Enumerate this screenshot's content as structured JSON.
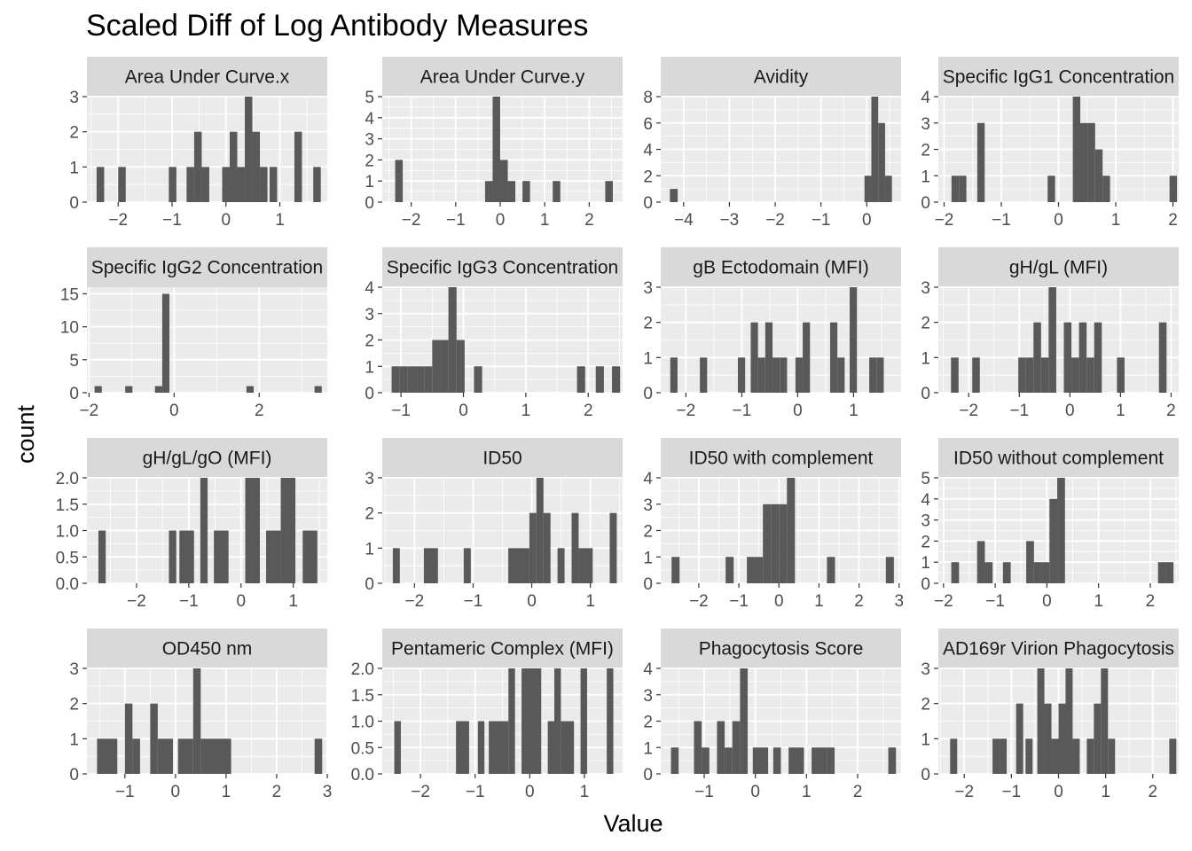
{
  "chart_data": {
    "type": "bar",
    "title": "Scaled Diff of Log Antibody Measures",
    "xlabel": "Value",
    "ylabel": "count",
    "colors": {
      "bar": "#595959",
      "panel": "#ebebeb",
      "strip": "#d9d9d9",
      "grid": "#ffffff",
      "tick": "#333333"
    },
    "facets": [
      {
        "name": "Area Under Curve.x",
        "xlim": [
          -2.58,
          1.88
        ],
        "ylim": [
          0,
          3
        ],
        "xticks": [
          -2,
          -1,
          0,
          1
        ],
        "yticks": [
          0,
          1,
          2,
          3
        ],
        "bins": [
          [
            -2.4,
            -2.26,
            1
          ],
          [
            -2.0,
            -1.86,
            1
          ],
          [
            -1.06,
            -0.92,
            1
          ],
          [
            -0.73,
            -0.59,
            1
          ],
          [
            -0.59,
            -0.45,
            2
          ],
          [
            -0.45,
            -0.31,
            1
          ],
          [
            -0.07,
            0.07,
            1
          ],
          [
            0.07,
            0.21,
            2
          ],
          [
            0.21,
            0.35,
            1
          ],
          [
            0.35,
            0.49,
            3
          ],
          [
            0.49,
            0.63,
            2
          ],
          [
            0.63,
            0.77,
            1
          ],
          [
            0.81,
            0.95,
            1
          ],
          [
            1.27,
            1.41,
            2
          ],
          [
            1.62,
            1.76,
            1
          ]
        ]
      },
      {
        "name": "Area Under Curve.y",
        "xlim": [
          -2.65,
          2.75
        ],
        "ylim": [
          0,
          5
        ],
        "xticks": [
          -2,
          -1,
          0,
          1,
          2
        ],
        "yticks": [
          0,
          1,
          2,
          3,
          4,
          5
        ],
        "bins": [
          [
            -2.36,
            -2.19,
            2
          ],
          [
            -0.34,
            -0.17,
            1
          ],
          [
            -0.17,
            0.0,
            5
          ],
          [
            0.0,
            0.17,
            2
          ],
          [
            0.17,
            0.34,
            1
          ],
          [
            0.5,
            0.67,
            1
          ],
          [
            1.18,
            1.35,
            1
          ],
          [
            2.36,
            2.53,
            1
          ]
        ]
      },
      {
        "name": "Avidity",
        "xlim": [
          -4.5,
          0.75
        ],
        "ylim": [
          0,
          8
        ],
        "xticks": [
          -4,
          -3,
          -2,
          -1,
          0
        ],
        "yticks": [
          0,
          2,
          4,
          6,
          8
        ],
        "bins": [
          [
            -4.3,
            -4.13,
            1
          ],
          [
            -0.05,
            0.1,
            2
          ],
          [
            0.1,
            0.25,
            8
          ],
          [
            0.25,
            0.4,
            6
          ],
          [
            0.4,
            0.55,
            2
          ]
        ]
      },
      {
        "name": "Specific IgG1 Concentration",
        "xlim": [
          -2.1,
          2.1
        ],
        "ylim": [
          0,
          4
        ],
        "xticks": [
          -2,
          -1,
          0,
          1,
          2
        ],
        "yticks": [
          0,
          1,
          2,
          3,
          4
        ],
        "bins": [
          [
            -1.87,
            -1.74,
            1
          ],
          [
            -1.74,
            -1.61,
            1
          ],
          [
            -1.42,
            -1.29,
            3
          ],
          [
            -0.19,
            -0.06,
            1
          ],
          [
            0.25,
            0.38,
            4
          ],
          [
            0.38,
            0.51,
            3
          ],
          [
            0.51,
            0.64,
            3
          ],
          [
            0.64,
            0.77,
            2
          ],
          [
            0.77,
            0.9,
            1
          ],
          [
            1.94,
            2.07,
            1
          ]
        ]
      },
      {
        "name": "Specific IgG2 Concentration",
        "xlim": [
          -2.05,
          3.6
        ],
        "ylim": [
          0,
          16
        ],
        "xticks": [
          -2,
          0,
          2
        ],
        "yticks": [
          0,
          5,
          10,
          15
        ],
        "bins": [
          [
            -1.87,
            -1.7,
            1
          ],
          [
            -1.15,
            -0.98,
            1
          ],
          [
            -0.45,
            -0.28,
            1
          ],
          [
            -0.28,
            -0.11,
            15
          ],
          [
            1.7,
            1.87,
            1
          ],
          [
            3.3,
            3.47,
            1
          ]
        ]
      },
      {
        "name": "Specific IgG3 Concentration",
        "xlim": [
          -1.3,
          2.55
        ],
        "ylim": [
          0,
          4
        ],
        "xticks": [
          -1,
          0,
          1,
          2
        ],
        "yticks": [
          0,
          1,
          2,
          3,
          4
        ],
        "bins": [
          [
            -1.15,
            -1.02,
            1
          ],
          [
            -1.02,
            -0.89,
            1
          ],
          [
            -0.89,
            -0.76,
            1
          ],
          [
            -0.76,
            -0.63,
            1
          ],
          [
            -0.63,
            -0.5,
            1
          ],
          [
            -0.5,
            -0.37,
            2
          ],
          [
            -0.37,
            -0.24,
            2
          ],
          [
            -0.24,
            -0.11,
            4
          ],
          [
            -0.11,
            0.02,
            2
          ],
          [
            0.17,
            0.3,
            1
          ],
          [
            1.82,
            1.95,
            1
          ],
          [
            2.12,
            2.25,
            1
          ],
          [
            2.38,
            2.51,
            1
          ]
        ]
      },
      {
        "name": "gB Ectodomain (MFI)",
        "xlim": [
          -2.45,
          1.85
        ],
        "ylim": [
          0,
          3
        ],
        "xticks": [
          -2,
          -1,
          0,
          1
        ],
        "yticks": [
          0,
          1,
          2,
          3
        ],
        "bins": [
          [
            -2.28,
            -2.15,
            1
          ],
          [
            -1.75,
            -1.62,
            1
          ],
          [
            -1.07,
            -0.94,
            1
          ],
          [
            -0.84,
            -0.71,
            2
          ],
          [
            -0.71,
            -0.58,
            1
          ],
          [
            -0.58,
            -0.45,
            2
          ],
          [
            -0.45,
            -0.32,
            1
          ],
          [
            -0.32,
            -0.19,
            1
          ],
          [
            -0.04,
            0.09,
            1
          ],
          [
            0.09,
            0.22,
            2
          ],
          [
            0.58,
            0.71,
            2
          ],
          [
            0.71,
            0.84,
            1
          ],
          [
            0.93,
            1.06,
            3
          ],
          [
            1.28,
            1.41,
            1
          ],
          [
            1.41,
            1.54,
            1
          ]
        ]
      },
      {
        "name": "gH/gL (MFI)",
        "xlim": [
          -2.6,
          2.15
        ],
        "ylim": [
          0,
          3
        ],
        "xticks": [
          -2,
          -1,
          0,
          1,
          2
        ],
        "yticks": [
          0,
          1,
          2,
          3
        ],
        "bins": [
          [
            -2.35,
            -2.2,
            1
          ],
          [
            -1.93,
            -1.78,
            1
          ],
          [
            -1.02,
            -0.87,
            1
          ],
          [
            -0.87,
            -0.72,
            1
          ],
          [
            -0.72,
            -0.57,
            2
          ],
          [
            -0.57,
            -0.42,
            1
          ],
          [
            -0.42,
            -0.27,
            3
          ],
          [
            -0.12,
            0.03,
            2
          ],
          [
            0.03,
            0.18,
            1
          ],
          [
            0.18,
            0.33,
            2
          ],
          [
            0.33,
            0.48,
            1
          ],
          [
            0.48,
            0.63,
            2
          ],
          [
            0.93,
            1.08,
            1
          ],
          [
            1.76,
            1.91,
            2
          ]
        ]
      },
      {
        "name": "gH/gL/gO (MFI)",
        "xlim": [
          -2.95,
          1.65
        ],
        "ylim": [
          0,
          2
        ],
        "xticks": [
          -2,
          -1,
          0,
          1
        ],
        "yticks": [
          0,
          0.5,
          1,
          1.5,
          2
        ],
        "yticklabels": [
          "0.0",
          "0.5",
          "1.0",
          "1.5",
          "2.0"
        ],
        "bins": [
          [
            -2.73,
            -2.59,
            1
          ],
          [
            -1.38,
            -1.24,
            1
          ],
          [
            -1.18,
            -0.9,
            1
          ],
          [
            -0.78,
            -0.64,
            2
          ],
          [
            -0.52,
            -0.24,
            1
          ],
          [
            0.08,
            0.36,
            2
          ],
          [
            0.48,
            0.76,
            1
          ],
          [
            0.76,
            1.04,
            2
          ],
          [
            1.18,
            1.46,
            1
          ]
        ]
      },
      {
        "name": "ID50",
        "xlim": [
          -2.55,
          1.55
        ],
        "ylim": [
          0,
          3
        ],
        "xticks": [
          -2,
          -1,
          0,
          1
        ],
        "yticks": [
          0,
          1,
          2,
          3
        ],
        "bins": [
          [
            -2.37,
            -2.25,
            1
          ],
          [
            -1.84,
            -1.6,
            1
          ],
          [
            -1.16,
            -1.04,
            1
          ],
          [
            -0.4,
            -0.04,
            1
          ],
          [
            -0.04,
            0.08,
            2
          ],
          [
            0.08,
            0.2,
            3
          ],
          [
            0.2,
            0.32,
            2
          ],
          [
            0.44,
            0.56,
            1
          ],
          [
            0.68,
            0.8,
            2
          ],
          [
            0.8,
            1.04,
            1
          ],
          [
            1.33,
            1.45,
            2
          ]
        ]
      },
      {
        "name": "ID50 with complement",
        "xlim": [
          -2.95,
          3.05
        ],
        "ylim": [
          0,
          4
        ],
        "xticks": [
          -2,
          -1,
          0,
          1,
          2,
          3
        ],
        "yticks": [
          0,
          1,
          2,
          3,
          4
        ],
        "bins": [
          [
            -2.68,
            -2.48,
            1
          ],
          [
            -1.33,
            -1.13,
            1
          ],
          [
            -0.8,
            -0.4,
            1
          ],
          [
            -0.4,
            -0.2,
            3
          ],
          [
            -0.2,
            0.0,
            3
          ],
          [
            0.0,
            0.2,
            3
          ],
          [
            0.2,
            0.4,
            4
          ],
          [
            1.2,
            1.4,
            1
          ],
          [
            2.67,
            2.87,
            1
          ]
        ]
      },
      {
        "name": "ID50 without complement",
        "xlim": [
          -2.1,
          2.55
        ],
        "ylim": [
          0,
          5
        ],
        "xticks": [
          -2,
          -1,
          0,
          1,
          2
        ],
        "yticks": [
          0,
          1,
          2,
          3,
          4,
          5
        ],
        "bins": [
          [
            -1.85,
            -1.7,
            1
          ],
          [
            -1.35,
            -1.2,
            2
          ],
          [
            -1.2,
            -1.05,
            1
          ],
          [
            -0.85,
            -0.7,
            1
          ],
          [
            -0.4,
            -0.25,
            2
          ],
          [
            -0.25,
            -0.1,
            1
          ],
          [
            -0.1,
            0.05,
            1
          ],
          [
            0.05,
            0.2,
            4
          ],
          [
            0.2,
            0.35,
            5
          ],
          [
            2.15,
            2.3,
            1
          ],
          [
            2.3,
            2.45,
            1
          ]
        ]
      },
      {
        "name": "OD450 nm",
        "xlim": [
          -1.75,
          3.0
        ],
        "ylim": [
          0,
          3
        ],
        "xticks": [
          -1,
          0,
          1,
          2,
          3
        ],
        "yticks": [
          0,
          1,
          2,
          3
        ],
        "bins": [
          [
            -1.55,
            -1.15,
            1
          ],
          [
            -1.0,
            -0.85,
            2
          ],
          [
            -0.85,
            -0.7,
            1
          ],
          [
            -0.5,
            -0.35,
            2
          ],
          [
            -0.35,
            -0.05,
            1
          ],
          [
            0.05,
            0.35,
            1
          ],
          [
            0.35,
            0.5,
            3
          ],
          [
            0.5,
            1.1,
            1
          ],
          [
            2.75,
            2.9,
            1
          ]
        ]
      },
      {
        "name": "Pentameric Complex (MFI)",
        "xlim": [
          -2.7,
          1.7
        ],
        "ylim": [
          0,
          2
        ],
        "xticks": [
          -2,
          -1,
          0,
          1
        ],
        "yticks": [
          0,
          0.5,
          1,
          1.5,
          2
        ],
        "yticklabels": [
          "0.0",
          "0.5",
          "1.0",
          "1.5",
          "2.0"
        ],
        "bins": [
          [
            -2.48,
            -2.36,
            1
          ],
          [
            -1.35,
            -1.11,
            1
          ],
          [
            -0.95,
            -0.83,
            1
          ],
          [
            -0.75,
            -0.39,
            1
          ],
          [
            -0.39,
            -0.27,
            2
          ],
          [
            -0.15,
            0.21,
            2
          ],
          [
            0.33,
            0.45,
            1
          ],
          [
            0.45,
            0.57,
            2
          ],
          [
            0.57,
            0.81,
            1
          ],
          [
            0.93,
            1.05,
            2
          ],
          [
            1.41,
            1.53,
            2
          ]
        ]
      },
      {
        "name": "Phagocytosis Score",
        "xlim": [
          -1.85,
          2.85
        ],
        "ylim": [
          0,
          4
        ],
        "xticks": [
          -1,
          0,
          1,
          2
        ],
        "yticks": [
          0,
          1,
          2,
          3,
          4
        ],
        "bins": [
          [
            -1.65,
            -1.5,
            1
          ],
          [
            -1.2,
            -1.05,
            2
          ],
          [
            -1.05,
            -0.9,
            1
          ],
          [
            -0.75,
            -0.6,
            2
          ],
          [
            -0.6,
            -0.45,
            1
          ],
          [
            -0.45,
            -0.3,
            2
          ],
          [
            -0.3,
            -0.15,
            4
          ],
          [
            -0.05,
            0.25,
            1
          ],
          [
            0.35,
            0.5,
            1
          ],
          [
            0.65,
            0.95,
            1
          ],
          [
            1.1,
            1.4,
            1
          ],
          [
            1.4,
            1.55,
            1
          ],
          [
            2.6,
            2.75,
            1
          ]
        ]
      },
      {
        "name": "AD169r Virion Phagocytosis",
        "xlim": [
          -2.55,
          2.55
        ],
        "ylim": [
          0,
          3
        ],
        "xticks": [
          -2,
          -1,
          0,
          1,
          2
        ],
        "yticks": [
          0,
          1,
          2,
          3
        ],
        "bins": [
          [
            -2.3,
            -2.15,
            1
          ],
          [
            -1.4,
            -1.25,
            1
          ],
          [
            -1.25,
            -1.1,
            1
          ],
          [
            -0.9,
            -0.75,
            2
          ],
          [
            -0.7,
            -0.55,
            1
          ],
          [
            -0.45,
            -0.3,
            3
          ],
          [
            -0.3,
            -0.15,
            2
          ],
          [
            -0.15,
            0.0,
            1
          ],
          [
            0.0,
            0.15,
            2
          ],
          [
            0.15,
            0.3,
            3
          ],
          [
            0.3,
            0.45,
            1
          ],
          [
            0.6,
            0.75,
            1
          ],
          [
            0.75,
            0.9,
            2
          ],
          [
            0.9,
            1.05,
            3
          ],
          [
            1.05,
            1.2,
            1
          ],
          [
            2.35,
            2.5,
            1
          ]
        ]
      }
    ]
  }
}
